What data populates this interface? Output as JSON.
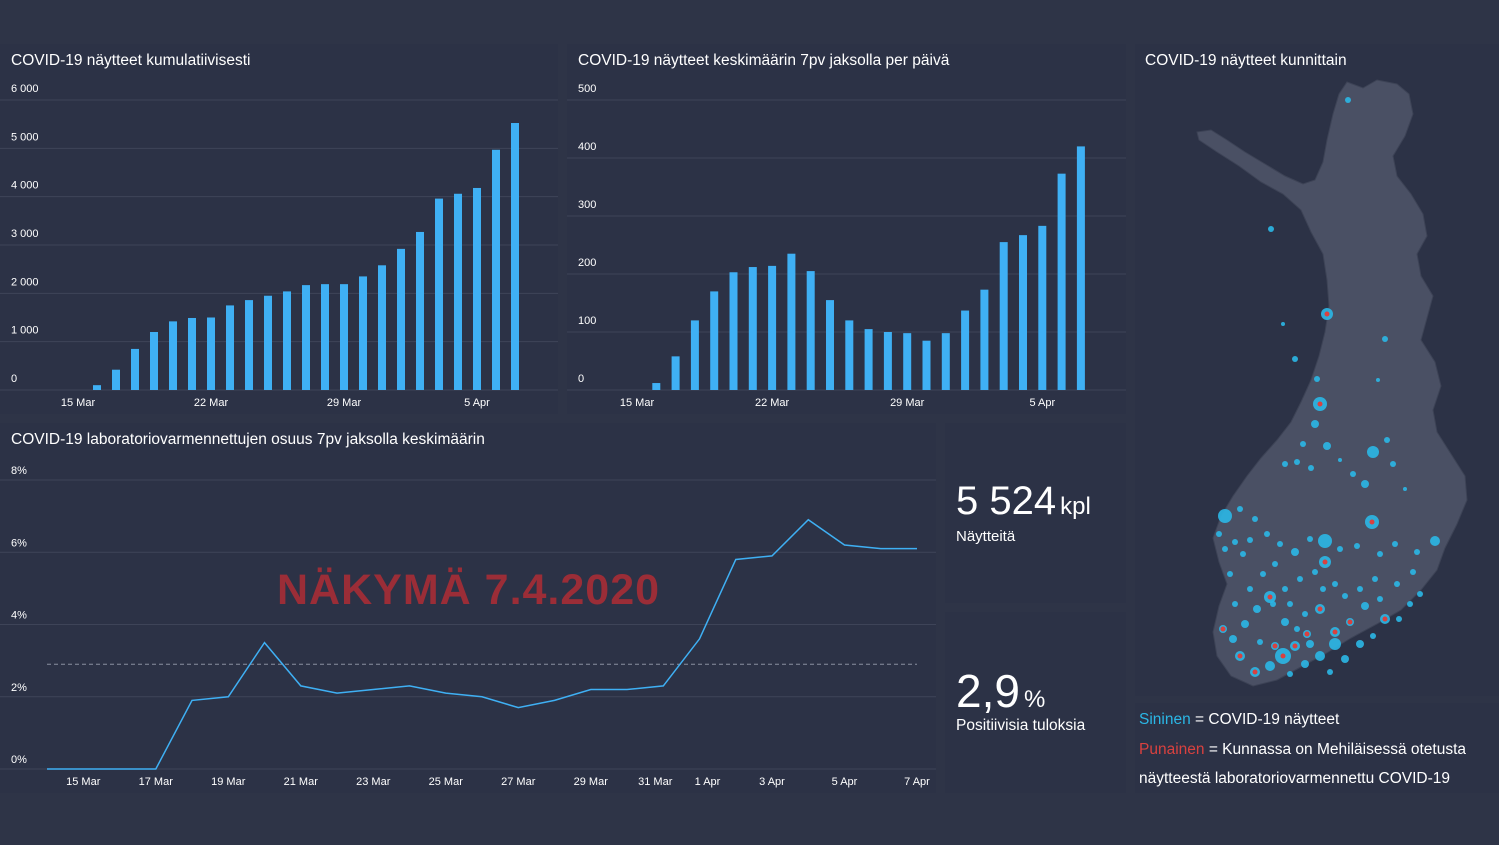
{
  "charts": {
    "cumulative": {
      "title": "COVID-19 näytteet kumulatiivisesti"
    },
    "rolling": {
      "title": "COVID-19 näytteet keskimäärin 7pv jaksolla per päivä"
    },
    "positive": {
      "title": "COVID-19 laboratoriovarmennettujen osuus 7pv jaksolla keskimäärin"
    }
  },
  "map": {
    "title": "COVID-19 näytteet kunnittain",
    "legend": {
      "blue_word": "Sininen",
      "blue_text": " = COVID-19 näytteet",
      "red_word": "Punainen",
      "red_text": " = Kunnassa on Mehiläisessä otetusta",
      "red_text_2": "näytteestä laboratoriovarmennettu COVID-19"
    },
    "colors": {
      "land": "#4a5064",
      "dot": "#2bb7e6",
      "red": "#d9413f"
    }
  },
  "kpis": {
    "samples": {
      "value": "5 524",
      "unit": "kpl",
      "label": "Näytteitä"
    },
    "positive": {
      "value": "2,9",
      "unit": "%",
      "label": "Positiivisia tuloksia"
    }
  },
  "watermark": "NÄKYMÄ 7.4.2020",
  "colors": {
    "bar": "#3fb0f4",
    "line": "#3fb0f4",
    "background": "#2e3447",
    "watermark": "#9b2d37"
  },
  "chart_data": [
    {
      "type": "bar",
      "title": "COVID-19 näytteet kumulatiivisesti",
      "x_start_index": 0,
      "tick_labels": [
        "15 Mar",
        "22 Mar",
        "29 Mar",
        "5 Apr"
      ],
      "tick_indices": [
        0,
        7,
        14,
        21
      ],
      "y_ticks": [
        "0",
        "1 000",
        "2 000",
        "3 000",
        "4 000",
        "5 000",
        "6 000"
      ],
      "ylim": [
        0,
        6000
      ],
      "days": [
        "15 Mar",
        "16 Mar",
        "17 Mar",
        "18 Mar",
        "19 Mar",
        "20 Mar",
        "21 Mar",
        "22 Mar",
        "23 Mar",
        "24 Mar",
        "25 Mar",
        "26 Mar",
        "27 Mar",
        "28 Mar",
        "29 Mar",
        "30 Mar",
        "31 Mar",
        "1 Apr",
        "2 Apr",
        "3 Apr",
        "4 Apr",
        "5 Apr",
        "6 Apr",
        "7 Apr"
      ],
      "values": [
        0,
        100,
        420,
        850,
        1200,
        1420,
        1490,
        1500,
        1750,
        1860,
        1950,
        2040,
        2170,
        2190,
        2190,
        2350,
        2580,
        2920,
        3270,
        3960,
        4060,
        4180,
        4970,
        5524
      ]
    },
    {
      "type": "bar",
      "title": "COVID-19 näytteet keskimäärin 7pv jaksolla per päivä",
      "tick_labels": [
        "15 Mar",
        "22 Mar",
        "29 Mar",
        "5 Apr"
      ],
      "tick_indices": [
        0,
        7,
        14,
        21
      ],
      "y_ticks": [
        "0",
        "100",
        "200",
        "300",
        "400",
        "500"
      ],
      "ylim": [
        0,
        500
      ],
      "days": [
        "15 Mar",
        "16 Mar",
        "17 Mar",
        "18 Mar",
        "19 Mar",
        "20 Mar",
        "21 Mar",
        "22 Mar",
        "23 Mar",
        "24 Mar",
        "25 Mar",
        "26 Mar",
        "27 Mar",
        "28 Mar",
        "29 Mar",
        "30 Mar",
        "31 Mar",
        "1 Apr",
        "2 Apr",
        "3 Apr",
        "4 Apr",
        "5 Apr",
        "6 Apr",
        "7 Apr"
      ],
      "values": [
        0,
        12,
        58,
        120,
        170,
        203,
        212,
        214,
        235,
        205,
        155,
        120,
        105,
        100,
        98,
        85,
        98,
        137,
        173,
        255,
        267,
        283,
        373,
        420
      ]
    },
    {
      "type": "line",
      "title": "COVID-19 laboratoriovarmennettujen osuus 7pv jaksolla keskimäärin",
      "x": [
        "14 Mar",
        "15 Mar",
        "16 Mar",
        "17 Mar",
        "18 Mar",
        "19 Mar",
        "20 Mar",
        "21 Mar",
        "22 Mar",
        "23 Mar",
        "24 Mar",
        "25 Mar",
        "26 Mar",
        "27 Mar",
        "28 Mar",
        "29 Mar",
        "30 Mar",
        "31 Mar",
        "1 Apr",
        "2 Apr",
        "3 Apr",
        "4 Apr",
        "5 Apr",
        "6 Apr",
        "7 Apr"
      ],
      "values": [
        0,
        0,
        0,
        0,
        1.9,
        2.0,
        3.5,
        2.3,
        2.1,
        2.2,
        2.3,
        2.1,
        2.0,
        1.7,
        1.9,
        2.2,
        2.2,
        2.3,
        3.6,
        5.8,
        5.9,
        6.9,
        6.2,
        6.1,
        6.1
      ],
      "reference_line": 2.9,
      "reference_style": "dashed",
      "y_ticks": [
        "0%",
        "2%",
        "4%",
        "6%",
        "8%"
      ],
      "ylim": [
        0,
        8
      ],
      "tick_labels": [
        "15 Mar",
        "17 Mar",
        "19 Mar",
        "21 Mar",
        "23 Mar",
        "25 Mar",
        "27 Mar",
        "29 Mar",
        "31 Mar",
        "1 Apr",
        "3 Apr",
        "5 Apr",
        "7 Apr"
      ]
    }
  ]
}
